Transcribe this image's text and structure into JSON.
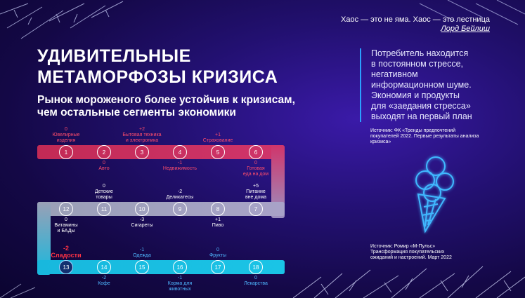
{
  "quote": {
    "text": "Хаос — это не яма. Хаос — это лестница",
    "author": "Лорд Бейлиш"
  },
  "title": {
    "line1": "УДИВИТЕЛЬНЫЕ",
    "line2": "МЕТАМОРФОЗЫ КРИЗИСА"
  },
  "subtitle": {
    "line1": "Рынок мороженого более устойчив к кризисам,",
    "line2": "чем остальные сегменты экономики"
  },
  "sidecard": {
    "lines": [
      "Потребитель находится",
      "в постоянном стрессе,",
      "негативном",
      "информационном шуме.",
      "Экономия и продукты",
      "для «заедания стресса»",
      "выходят на первый план"
    ]
  },
  "source1": {
    "lines": [
      "Источник: ФК «Тренды предпочтений",
      "покупателей 2022. Первые результаты анализа",
      "кризиса»"
    ]
  },
  "source2": {
    "lines": [
      "Источник: Ромир «М-Пульс»",
      "Трансформация покупательских",
      "ожиданий и настроений. Март 2022"
    ]
  },
  "colors": {
    "row1": "#c8305c",
    "row2": "#8f8fb0",
    "row3": "#18b8dd",
    "accent": "#2aa0ff"
  },
  "icons": {
    "illustration": "ice-cream-cone-icon"
  },
  "ranks": [
    {
      "rank": "1",
      "value": "0",
      "label": [
        "Ювелирные",
        "изделия"
      ],
      "color": "red"
    },
    {
      "rank": "2",
      "value": "0",
      "label": [
        "Авто"
      ],
      "color": "red"
    },
    {
      "rank": "3",
      "value": "+2",
      "label": [
        "Бытовая техника",
        "и электроника"
      ],
      "color": "red"
    },
    {
      "rank": "4",
      "value": "-1",
      "label": [
        "Недвижимость"
      ],
      "color": "red"
    },
    {
      "rank": "5",
      "value": "+1",
      "label": [
        "Страхование"
      ],
      "color": "red"
    },
    {
      "rank": "6",
      "value": "0",
      "label": [
        "Готовая",
        "еда на дом"
      ],
      "color": "red"
    },
    {
      "rank": "7",
      "value": "+5",
      "label": [
        "Питание",
        "вне дома"
      ],
      "color": "white"
    },
    {
      "rank": "8",
      "value": "+1",
      "label": [
        "Пиво"
      ],
      "color": "white"
    },
    {
      "rank": "9",
      "value": "-2",
      "label": [
        "Деликатесы"
      ],
      "color": "white"
    },
    {
      "rank": "10",
      "value": "-3",
      "label": [
        "Сигареты"
      ],
      "color": "white"
    },
    {
      "rank": "11",
      "value": "0",
      "label": [
        "Детские",
        "товары"
      ],
      "color": "white"
    },
    {
      "rank": "12",
      "value": "0",
      "label": [
        "Витамины",
        "и БАДы"
      ],
      "color": "white"
    },
    {
      "rank": "13",
      "value": "-2",
      "label": [
        "Сладости"
      ],
      "color": "hl"
    },
    {
      "rank": "14",
      "value": "-2",
      "label": [
        "Кофе"
      ],
      "color": "blue"
    },
    {
      "rank": "15",
      "value": "-1",
      "label": [
        "Одежда"
      ],
      "color": "blue"
    },
    {
      "rank": "16",
      "value": "-1",
      "label": [
        "Корма для",
        "животных"
      ],
      "color": "blue"
    },
    {
      "rank": "17",
      "value": "0",
      "label": [
        "Фрукты"
      ],
      "color": "blue"
    },
    {
      "rank": "18",
      "value": "0",
      "label": [
        "Лекарства"
      ],
      "color": "blue"
    }
  ]
}
